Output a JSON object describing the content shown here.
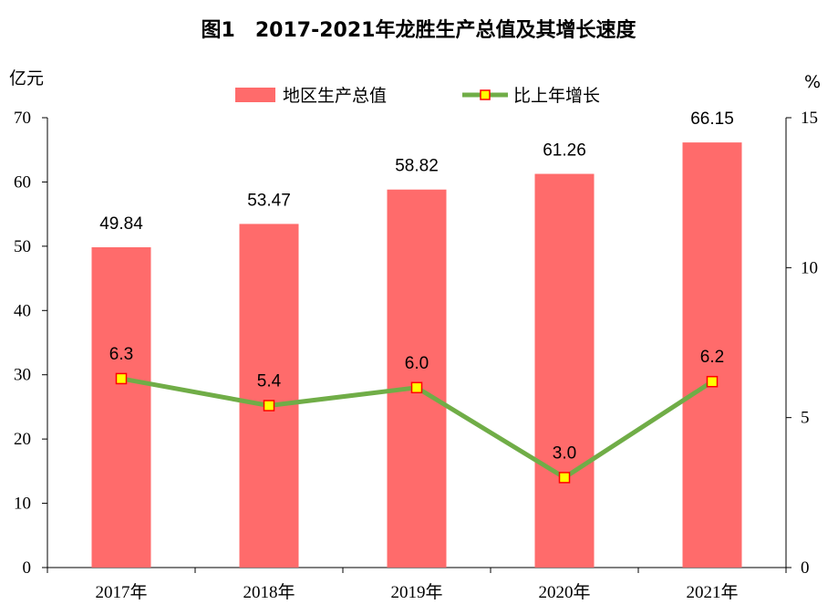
{
  "chart_data": {
    "type": "bar+line",
    "title": "图1　2017-2021年龙胜生产总值及其增长速度",
    "categories": [
      "2017年",
      "2018年",
      "2019年",
      "2020年",
      "2021年"
    ],
    "series": [
      {
        "name": "地区生产总值",
        "type": "bar",
        "axis": "left",
        "color": "#ff6b6b",
        "values": [
          49.84,
          53.47,
          58.82,
          61.26,
          66.15
        ],
        "labels": [
          "49.84",
          "53.47",
          "58.82",
          "61.26",
          "66.15"
        ]
      },
      {
        "name": "比上年增长",
        "type": "line",
        "axis": "right",
        "color": "#70ad47",
        "marker_fill": "#ffff00",
        "marker_edge": "#ff0000",
        "values": [
          6.3,
          5.4,
          6.0,
          3.0,
          6.2
        ],
        "labels": [
          "6.3",
          "5.4",
          "6.0",
          "3.0",
          "6.2"
        ]
      }
    ],
    "left_axis": {
      "label": "亿元",
      "ylim": [
        0,
        70
      ],
      "ticks": [
        "0",
        "10",
        "20",
        "30",
        "40",
        "50",
        "60",
        "70"
      ]
    },
    "right_axis": {
      "label": "%",
      "ylim": [
        0,
        15
      ],
      "ticks": [
        "0",
        "5",
        "10",
        "15"
      ]
    },
    "legend_position": "top"
  }
}
